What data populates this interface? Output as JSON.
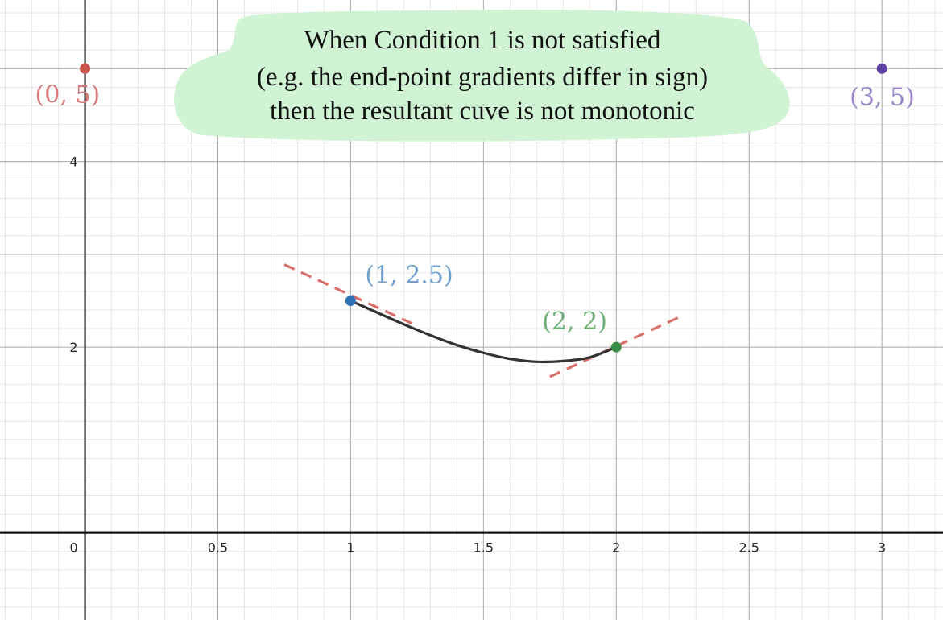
{
  "chart_data": {
    "type": "scatter",
    "title": "",
    "xlabel": "",
    "ylabel": "",
    "xlim": [
      -0.32,
      3.23
    ],
    "ylim": [
      -0.47,
      2.87
    ],
    "grid": true,
    "x_ticks": [
      {
        "value": 0.5,
        "label": "0.5"
      },
      {
        "value": 1,
        "label": "1"
      },
      {
        "value": 1.5,
        "label": "1.5"
      },
      {
        "value": 2,
        "label": "2"
      },
      {
        "value": 2.5,
        "label": "2.5"
      },
      {
        "value": 3,
        "label": "3"
      }
    ],
    "y_ticks": [
      {
        "value": 1,
        "label": "2"
      },
      {
        "value": 2,
        "label": "4"
      }
    ],
    "origin_label": "0",
    "points": [
      {
        "x": 0,
        "y": 2.5,
        "label": "(0, 5)",
        "color": "#c9524b",
        "label_color": "#d9787b"
      },
      {
        "x": 1,
        "y": 1.25,
        "label": "(1, 2.5)",
        "color": "#2d70b3",
        "label_color": "#6f9fcf"
      },
      {
        "x": 2,
        "y": 1.0,
        "label": "(2, 2)",
        "color": "#388c46",
        "label_color": "#6fae78"
      },
      {
        "x": 3,
        "y": 2.5,
        "label": "(3, 5)",
        "color": "#6042a6",
        "label_color": "#9b86c8"
      }
    ],
    "curve": {
      "color": "#333333",
      "points": [
        [
          1,
          1.25
        ],
        [
          1.1,
          1.186
        ],
        [
          1.2,
          1.123
        ],
        [
          1.3,
          1.064
        ],
        [
          1.4,
          1.011
        ],
        [
          1.5,
          0.969
        ],
        [
          1.6,
          0.937
        ],
        [
          1.7,
          0.921
        ],
        [
          1.8,
          0.925
        ],
        [
          1.9,
          0.945
        ],
        [
          2,
          1.0
        ]
      ]
    },
    "tangents": [
      {
        "color": "#d9706b",
        "style": "dashed",
        "points": [
          [
            0.75,
            1.445
          ],
          [
            1.25,
            1.115
          ]
        ]
      },
      {
        "color": "#d9706b",
        "style": "dashed",
        "points": [
          [
            1.75,
            0.84
          ],
          [
            2.25,
            1.17
          ]
        ]
      }
    ],
    "annotation": {
      "lines": [
        "When Condition 1 is not satisfied",
        "(e.g. the end-point gradients differ in sign)",
        "then the resultant cuve is not monotonic"
      ],
      "fill": "#cdf2d2"
    }
  }
}
